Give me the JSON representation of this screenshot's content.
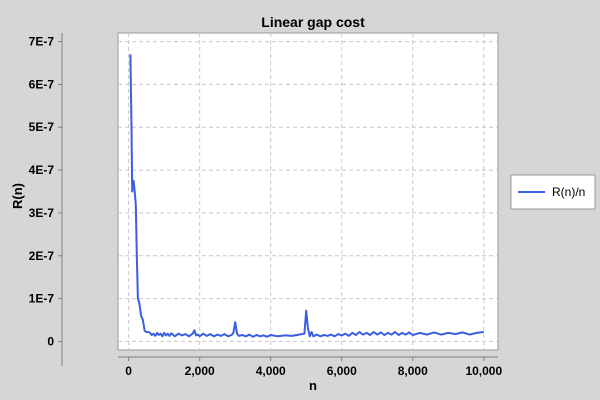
{
  "chart_data": {
    "type": "line",
    "title": "Linear gap cost",
    "xlabel": "n",
    "ylabel": "R(n)",
    "xlim": [
      -300,
      10400
    ],
    "ylim": [
      -2e-08,
      7.2e-07
    ],
    "x_ticks": [
      0,
      2000,
      4000,
      6000,
      8000,
      10000
    ],
    "x_tick_labels": [
      "0",
      "2,000",
      "4,000",
      "6,000",
      "8,000",
      "10,000"
    ],
    "y_ticks": [
      0,
      1e-07,
      2e-07,
      3e-07,
      4e-07,
      5e-07,
      6e-07,
      7e-07
    ],
    "y_tick_labels": [
      "0",
      "1E-7",
      "2E-7",
      "3E-7",
      "4E-7",
      "5E-7",
      "6E-7",
      "7E-7"
    ],
    "grid": true,
    "legend_position": "right",
    "series": [
      {
        "name": "R(n)/n",
        "color": "#3a5fe0",
        "x": [
          50,
          80,
          100,
          120,
          140,
          170,
          200,
          230,
          260,
          300,
          350,
          400,
          450,
          500,
          550,
          600,
          650,
          700,
          750,
          800,
          850,
          900,
          950,
          1000,
          1050,
          1100,
          1150,
          1200,
          1300,
          1400,
          1500,
          1600,
          1700,
          1800,
          1850,
          1900,
          1950,
          2000,
          2100,
          2200,
          2300,
          2400,
          2500,
          2600,
          2700,
          2800,
          2900,
          2950,
          3000,
          3050,
          3100,
          3200,
          3300,
          3400,
          3500,
          3600,
          3700,
          3800,
          3900,
          4000,
          4200,
          4400,
          4600,
          4800,
          4950,
          5000,
          5050,
          5100,
          5150,
          5200,
          5300,
          5400,
          5500,
          5600,
          5700,
          5800,
          5900,
          6000,
          6100,
          6200,
          6300,
          6400,
          6500,
          6600,
          6700,
          6800,
          6900,
          7000,
          7100,
          7200,
          7300,
          7400,
          7500,
          7600,
          7700,
          7800,
          7900,
          8000,
          8200,
          8400,
          8600,
          8800,
          9000,
          9200,
          9400,
          9600,
          9800,
          10000
        ],
        "values": [
          6.7e-07,
          5e-07,
          3.5e-07,
          3.7e-07,
          3.75e-07,
          3.5e-07,
          3.2e-07,
          2e-07,
          1e-07,
          9e-08,
          6e-08,
          5e-08,
          2.5e-08,
          2.2e-08,
          2.2e-08,
          2e-08,
          1.5e-08,
          1.8e-08,
          1.3e-08,
          2e-08,
          1.5e-08,
          1.8e-08,
          1.2e-08,
          2e-08,
          1.4e-08,
          1.8e-08,
          1.3e-08,
          1.9e-08,
          1.2e-08,
          1.8e-08,
          1.4e-08,
          1.7e-08,
          1.2e-08,
          1.8e-08,
          2.6e-08,
          1.4e-08,
          1.6e-08,
          1.2e-08,
          1.8e-08,
          1.3e-08,
          1.7e-08,
          1.2e-08,
          1.6e-08,
          1.3e-08,
          1.7e-08,
          1.2e-08,
          1.5e-08,
          2e-08,
          4.5e-08,
          1.8e-08,
          1.3e-08,
          1.5e-08,
          1.2e-08,
          1.6e-08,
          1.1e-08,
          1.5e-08,
          1.2e-08,
          1.4e-08,
          1.1e-08,
          1.5e-08,
          1.2e-08,
          1.4e-08,
          1.3e-08,
          1.6e-08,
          1.8e-08,
          7.2e-08,
          3e-08,
          1.2e-08,
          2.2e-08,
          1.2e-08,
          1.6e-08,
          1.2e-08,
          1.5e-08,
          1.3e-08,
          1.6e-08,
          1.2e-08,
          1.7e-08,
          1.4e-08,
          1.8e-08,
          1.3e-08,
          2e-08,
          1.5e-08,
          2.2e-08,
          1.6e-08,
          2e-08,
          1.5e-08,
          2.2e-08,
          1.6e-08,
          2.1e-08,
          1.5e-08,
          2e-08,
          1.6e-08,
          2.2e-08,
          1.5e-08,
          2e-08,
          1.6e-08,
          2.1e-08,
          1.5e-08,
          2e-08,
          1.6e-08,
          2.1e-08,
          1.6e-08,
          2e-08,
          1.7e-08,
          2.1e-08,
          1.6e-08,
          2e-08,
          2.2e-08
        ]
      }
    ]
  }
}
